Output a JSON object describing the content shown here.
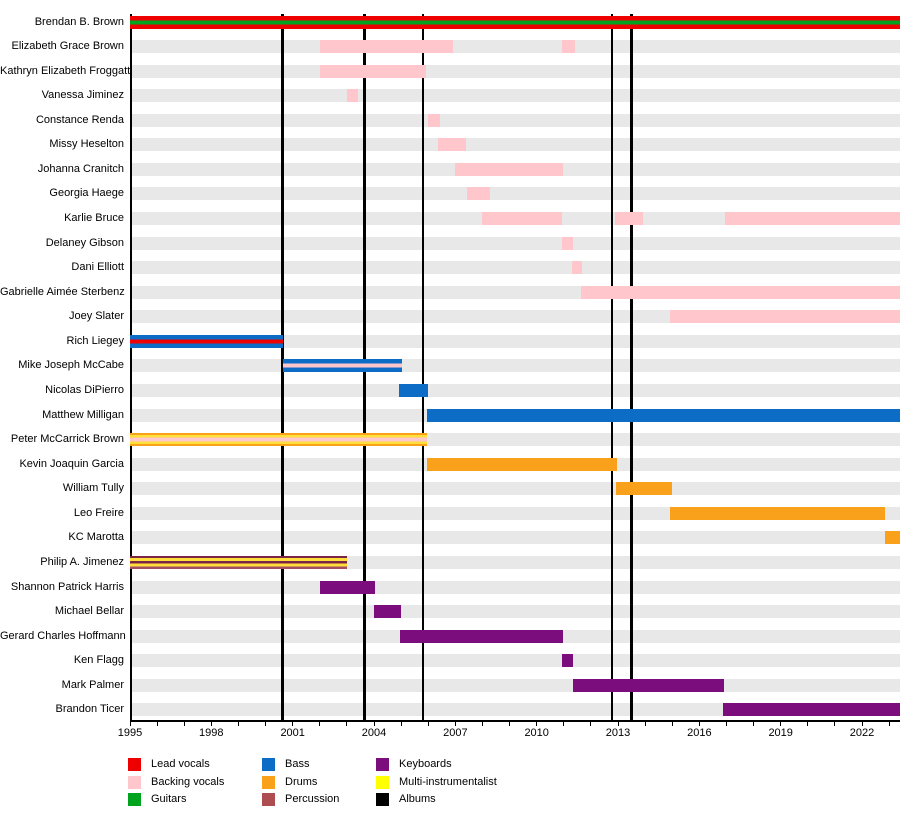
{
  "chart_data": {
    "type": "bar",
    "subtype": "horizontal-timeline-gantt",
    "description_visible_text_only": "Band membership timeline: member rows with colored role bars, vertical black album lines, year axis 1995-2022, legend of roles",
    "x_axis": {
      "start_year": 1995,
      "end_year": 2023.4,
      "label_years": [
        1995,
        1998,
        2001,
        2004,
        2007,
        2010,
        2013,
        2016,
        2019,
        2022
      ],
      "tick_interval_years": 1,
      "grid": false
    },
    "album_line_years": [
      2000.63,
      2003.65,
      2005.8,
      2012.78,
      2013.5
    ],
    "colors": {
      "lead_vocals": "#ef0000",
      "backing_vocals": "#ffc6cb",
      "guitars": "#00a31d",
      "bass": "#0d6cc6",
      "drums": "#f9a11b",
      "percussion": "#ad4d52",
      "keyboards": "#7c0d7c",
      "multi_instrumentalist": "#ffff00",
      "albums": "#000000",
      "bar_yellow": "#ffdf3a",
      "percussion_dark": "#7c2444",
      "percussion_rose": "#a34f62",
      "track": "#e8e8e8",
      "axis": "#000000"
    },
    "legend": {
      "position": "bottom",
      "columns": [
        [
          {
            "label": "Lead vocals",
            "color": "lead_vocals"
          },
          {
            "label": "Backing vocals",
            "color": "backing_vocals"
          },
          {
            "label": "Guitars",
            "color": "guitars"
          }
        ],
        [
          {
            "label": "Bass",
            "color": "bass"
          },
          {
            "label": "Drums",
            "color": "drums"
          },
          {
            "label": "Percussion",
            "color": "percussion"
          }
        ],
        [
          {
            "label": "Keyboards",
            "color": "keyboards"
          },
          {
            "label": "Multi-instrumentalist",
            "color": "multi_instrumentalist"
          },
          {
            "label": "Albums",
            "color": "albums"
          }
        ]
      ]
    },
    "members": [
      {
        "name": "Brendan B. Brown",
        "roles": [
          "Lead vocals",
          "Guitars"
        ],
        "stripes": [
          [
            "lead_vocals",
            0.34
          ],
          [
            "guitars",
            0.32
          ],
          [
            "lead_vocals",
            0.34
          ]
        ],
        "segments": [
          [
            1995,
            "end"
          ]
        ]
      },
      {
        "name": "Elizabeth Grace Brown",
        "roles": [
          "Backing vocals"
        ],
        "stripes": [
          [
            "backing_vocals",
            1
          ]
        ],
        "segments": [
          [
            2002.0,
            2006.93
          ],
          [
            2010.95,
            2011.4
          ]
        ]
      },
      {
        "name": "Kathryn Elizabeth Froggatt",
        "roles": [
          "Backing vocals"
        ],
        "stripes": [
          [
            "backing_vocals",
            1
          ]
        ],
        "segments": [
          [
            2002.0,
            2005.93
          ]
        ]
      },
      {
        "name": "Vanessa Jiminez",
        "roles": [
          "Backing vocals"
        ],
        "stripes": [
          [
            "backing_vocals",
            1
          ]
        ],
        "segments": [
          [
            2003.0,
            2003.42
          ]
        ]
      },
      {
        "name": "Constance Renda",
        "roles": [
          "Backing vocals"
        ],
        "stripes": [
          [
            "backing_vocals",
            1
          ]
        ],
        "segments": [
          [
            2006.0,
            2006.45
          ]
        ]
      },
      {
        "name": "Missy Heselton",
        "roles": [
          "Backing vocals"
        ],
        "stripes": [
          [
            "backing_vocals",
            1
          ]
        ],
        "segments": [
          [
            2006.37,
            2007.4
          ]
        ]
      },
      {
        "name": "Johanna Cranitch",
        "roles": [
          "Backing vocals"
        ],
        "stripes": [
          [
            "backing_vocals",
            1
          ]
        ],
        "segments": [
          [
            2007.0,
            2010.97
          ]
        ]
      },
      {
        "name": "Georgia Haege",
        "roles": [
          "Backing vocals"
        ],
        "stripes": [
          [
            "backing_vocals",
            1
          ]
        ],
        "segments": [
          [
            2007.42,
            2008.28
          ]
        ]
      },
      {
        "name": "Karlie Bruce",
        "roles": [
          "Backing vocals"
        ],
        "stripes": [
          [
            "backing_vocals",
            1
          ]
        ],
        "segments": [
          [
            2007.98,
            2010.93
          ],
          [
            2012.9,
            2013.93
          ],
          [
            2016.93,
            "end"
          ]
        ]
      },
      {
        "name": "Delaney Gibson",
        "roles": [
          "Backing vocals"
        ],
        "stripes": [
          [
            "backing_vocals",
            1
          ]
        ],
        "segments": [
          [
            2010.93,
            2011.35
          ]
        ]
      },
      {
        "name": "Dani Elliott",
        "roles": [
          "Backing vocals"
        ],
        "stripes": [
          [
            "backing_vocals",
            1
          ]
        ],
        "segments": [
          [
            2011.3,
            2011.67
          ]
        ]
      },
      {
        "name": "Gabrielle Aimée Sterbenz",
        "roles": [
          "Backing vocals"
        ],
        "stripes": [
          [
            "backing_vocals",
            1
          ]
        ],
        "segments": [
          [
            2011.63,
            "end"
          ]
        ]
      },
      {
        "name": "Joey Slater",
        "roles": [
          "Backing vocals"
        ],
        "stripes": [
          [
            "backing_vocals",
            1
          ]
        ],
        "segments": [
          [
            2014.9,
            "end"
          ]
        ]
      },
      {
        "name": "Rich Liegey",
        "roles": [
          "Bass",
          "Lead vocals"
        ],
        "stripes": [
          [
            "bass",
            0.33
          ],
          [
            "lead_vocals",
            0.34
          ],
          [
            "bass",
            0.33
          ]
        ],
        "segments": [
          [
            1995,
            2000.65
          ]
        ]
      },
      {
        "name": "Mike Joseph McCabe",
        "roles": [
          "Bass",
          "Backing vocals"
        ],
        "stripes": [
          [
            "bass",
            0.36
          ],
          [
            "backing_vocals",
            0.28
          ],
          [
            "bass",
            0.36
          ]
        ],
        "segments": [
          [
            2000.65,
            2005.05
          ]
        ]
      },
      {
        "name": "Nicolas DiPierro",
        "roles": [
          "Bass"
        ],
        "stripes": [
          [
            "bass",
            1
          ]
        ],
        "segments": [
          [
            2004.93,
            2006.0
          ]
        ]
      },
      {
        "name": "Matthew Milligan",
        "roles": [
          "Bass"
        ],
        "stripes": [
          [
            "bass",
            1
          ]
        ],
        "segments": [
          [
            2005.97,
            "end"
          ]
        ]
      },
      {
        "name": "Peter McCarrick Brown",
        "roles": [
          "Drums",
          "Multi-instrumentalist",
          "Backing vocals"
        ],
        "stripes": [
          [
            "drums",
            0.16
          ],
          [
            "bar_yellow",
            0.18
          ],
          [
            "backing_vocals",
            0.32
          ],
          [
            "bar_yellow",
            0.18
          ],
          [
            "drums",
            0.16
          ]
        ],
        "segments": [
          [
            1995,
            2005.97
          ]
        ]
      },
      {
        "name": "Kevin Joaquin Garcia",
        "roles": [
          "Drums"
        ],
        "stripes": [
          [
            "drums",
            1
          ]
        ],
        "segments": [
          [
            2005.97,
            2012.97
          ]
        ]
      },
      {
        "name": "William Tully",
        "roles": [
          "Drums"
        ],
        "stripes": [
          [
            "drums",
            1
          ]
        ],
        "segments": [
          [
            2012.93,
            2014.98
          ]
        ]
      },
      {
        "name": "Leo Freire",
        "roles": [
          "Drums"
        ],
        "stripes": [
          [
            "drums",
            1
          ]
        ],
        "segments": [
          [
            2014.9,
            2022.85
          ]
        ]
      },
      {
        "name": "KC Marotta",
        "roles": [
          "Drums"
        ],
        "stripes": [
          [
            "drums",
            1
          ]
        ],
        "segments": [
          [
            2022.85,
            "end"
          ]
        ]
      },
      {
        "name": "Philip A. Jimenez",
        "roles": [
          "Percussion",
          "Multi-instrumentalist"
        ],
        "stripes": [
          [
            "percussion_dark",
            0.17
          ],
          [
            "bar_yellow",
            0.23
          ],
          [
            "percussion_dark",
            0.16
          ],
          [
            "bar_yellow",
            0.23
          ],
          [
            "percussion_rose",
            0.21
          ]
        ],
        "segments": [
          [
            1995,
            2003.0
          ]
        ]
      },
      {
        "name": "Shannon Patrick Harris",
        "roles": [
          "Keyboards"
        ],
        "stripes": [
          [
            "keyboards",
            1
          ]
        ],
        "segments": [
          [
            2002.0,
            2004.02
          ]
        ]
      },
      {
        "name": "Michael Bellar",
        "roles": [
          "Keyboards"
        ],
        "stripes": [
          [
            "keyboards",
            1
          ]
        ],
        "segments": [
          [
            2003.98,
            2005.0
          ]
        ]
      },
      {
        "name": "Gerard Charles Hoffmann",
        "roles": [
          "Keyboards"
        ],
        "stripes": [
          [
            "keyboards",
            1
          ]
        ],
        "segments": [
          [
            2004.97,
            2010.97
          ]
        ]
      },
      {
        "name": "Ken Flagg",
        "roles": [
          "Keyboards"
        ],
        "stripes": [
          [
            "keyboards",
            1
          ]
        ],
        "segments": [
          [
            2010.93,
            2011.35
          ]
        ]
      },
      {
        "name": "Mark Palmer",
        "roles": [
          "Keyboards"
        ],
        "stripes": [
          [
            "keyboards",
            1
          ]
        ],
        "segments": [
          [
            2011.33,
            2016.93
          ]
        ]
      },
      {
        "name": "Brandon Ticer",
        "roles": [
          "Keyboards"
        ],
        "stripes": [
          [
            "keyboards",
            1
          ]
        ],
        "segments": [
          [
            2016.87,
            "end"
          ]
        ]
      }
    ]
  }
}
